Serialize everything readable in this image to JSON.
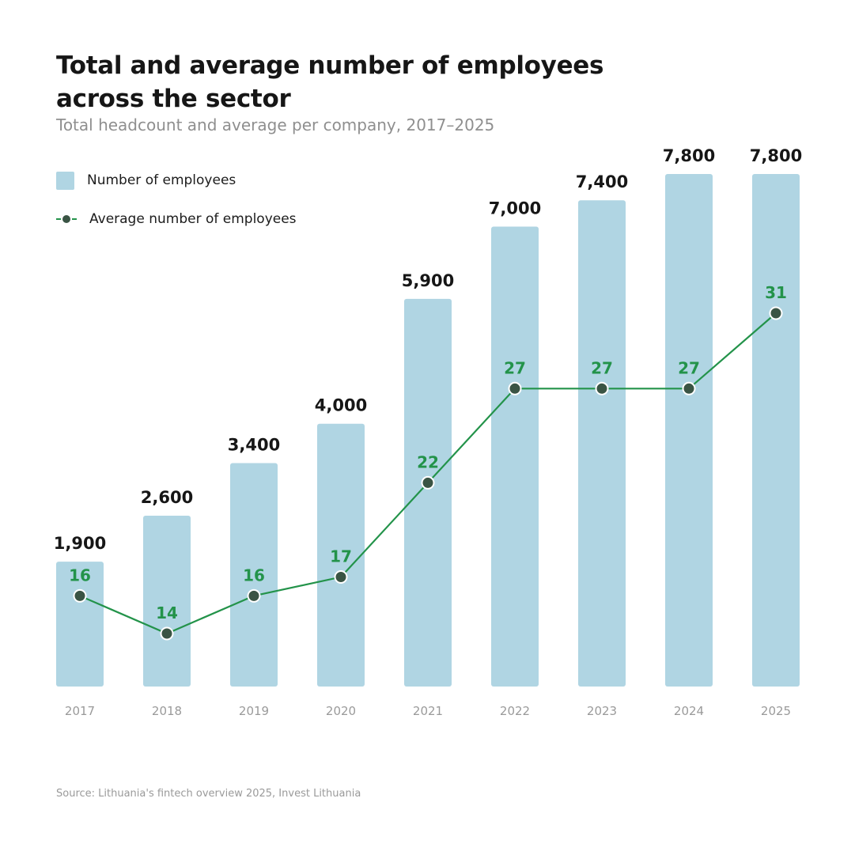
{
  "title": "Total and average number of employees across the sector",
  "subtitle": "Total headcount and average per company, 2017–2025",
  "source": "Source: Lithuania's fintech overview 2025, Invest Lithuania",
  "colors": {
    "bar": "#b0d5e3",
    "line": "#23934a",
    "marker_fill": "#3a5444",
    "avg_label": "#23934a"
  },
  "chart_data": {
    "type": "bar",
    "title": "Total and average number of employees across the sector",
    "subtitle": "Total headcount and average per company, 2017–2025",
    "categories": [
      "2017",
      "2018",
      "2019",
      "2020",
      "2021",
      "2022",
      "2023",
      "2024",
      "2025"
    ],
    "series": [
      {
        "name": "Number of employees",
        "type": "bar",
        "values": [
          1900,
          2600,
          3400,
          4000,
          5900,
          7000,
          7400,
          7800,
          7800
        ],
        "labels": [
          "1,900",
          "2,600",
          "3,400",
          "4,000",
          "5,900",
          "7,000",
          "7,400",
          "7,800",
          "7,800"
        ]
      },
      {
        "name": "Average number of employees",
        "type": "line",
        "values": [
          16,
          14,
          16,
          17,
          22,
          27,
          27,
          27,
          31
        ],
        "labels": [
          "16",
          "14",
          "16",
          "17",
          "22",
          "27",
          "27",
          "27",
          "31"
        ]
      }
    ],
    "bar_ylim": [
      0,
      7800
    ],
    "line_ylim": [
      8.6,
      37.7
    ],
    "grid": false,
    "legend_position": "top-left",
    "xlabel": "",
    "ylabel": ""
  }
}
